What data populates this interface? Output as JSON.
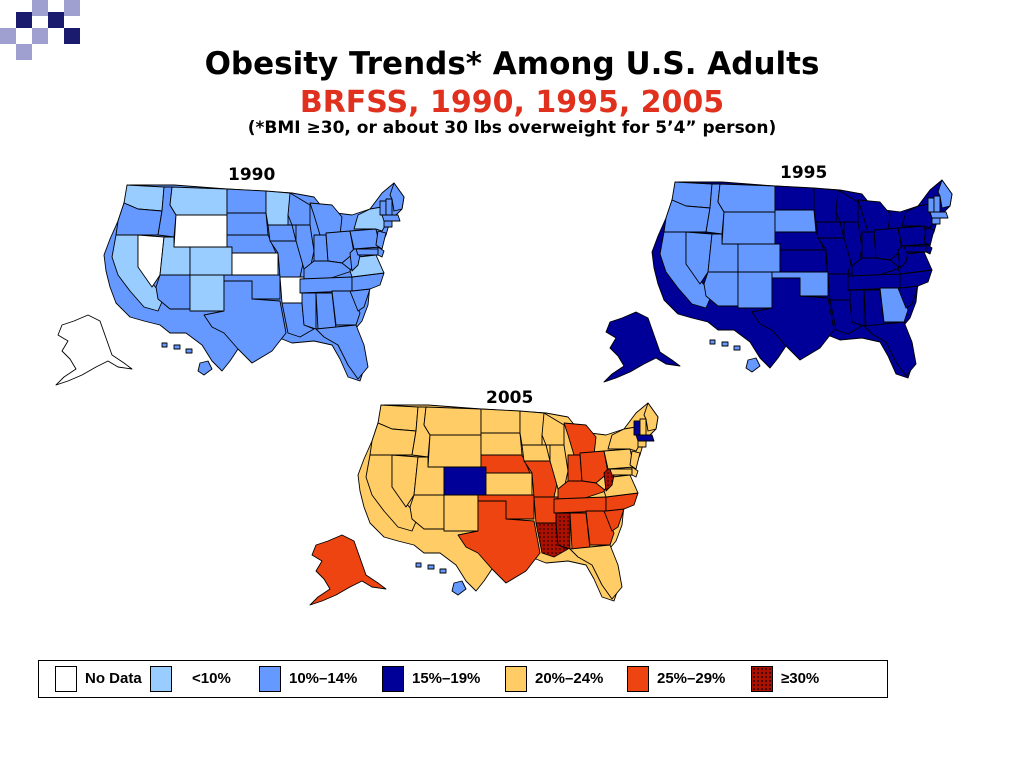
{
  "header": {
    "title": "Obesity Trends* Among U.S. Adults",
    "subtitle": "BRFSS, 1990, 1995, 2005",
    "note": "(*BMI ≥30, or about 30 lbs overweight for 5’4” person)"
  },
  "colors": {
    "deco_navy": "#1a1a6e",
    "deco_lavender": "#9fa0cf",
    "title_red": "#e0301e",
    "no_data": "#ffffff",
    "lt10": "#99ccff",
    "p10_14": "#6699ff",
    "p15_19": "#000099",
    "p20_24": "#ffcc66",
    "p25_29": "#ee4411",
    "ge30": "#aa1100"
  },
  "legend": {
    "items": [
      {
        "key": "no_data",
        "label": "No Data",
        "color": "#ffffff",
        "pattern": false
      },
      {
        "key": "lt10",
        "label": "<10%",
        "color": "#99ccff",
        "pattern": false
      },
      {
        "key": "p10_14",
        "label": "10%–14%",
        "color": "#6699ff",
        "pattern": false
      },
      {
        "key": "p15_19",
        "label": "15%–19%",
        "color": "#000099",
        "pattern": false
      },
      {
        "key": "p20_24",
        "label": "20%–24%",
        "color": "#ffcc66",
        "pattern": false
      },
      {
        "key": "p25_29",
        "label": "25%–29%",
        "color": "#ee4411",
        "pattern": false
      },
      {
        "key": "ge30",
        "label": "≥30%",
        "color": "#aa1100",
        "pattern": true
      }
    ]
  },
  "maps": [
    {
      "year": "1990",
      "base": "p10_14",
      "alaska": "no_data",
      "hawaii": "p10_14",
      "states": {
        "WA": "lt10",
        "MT": "lt10",
        "ND": "p10_14",
        "MN": "lt10",
        "WI": "p10_14",
        "MI": "p10_14",
        "OR": "p10_14",
        "ID": "p10_14",
        "WY": "no_data",
        "SD": "p10_14",
        "IA": "p10_14",
        "IL": "p10_14",
        "IN": "p10_14",
        "OH": "p10_14",
        "PA": "p10_14",
        "NY": "lt10",
        "ME": "p10_14",
        "VT": "p10_14",
        "NH": "p10_14",
        "MA": "p10_14",
        "CT": "p10_14",
        "NJ": "p10_14",
        "CA": "lt10",
        "NV": "no_data",
        "UT": "lt10",
        "CO": "lt10",
        "NE": "p10_14",
        "KS": "no_data",
        "MO": "p10_14",
        "KY": "p10_14",
        "WV": "p10_14",
        "VA": "lt10",
        "MD": "p10_14",
        "DE": "p10_14",
        "AZ": "p10_14",
        "NM": "lt10",
        "OK": "p10_14",
        "AR": "no_data",
        "TN": "p10_14",
        "NC": "p10_14",
        "SC": "p10_14",
        "TX": "p10_14",
        "LA": "p10_14",
        "MS": "p10_14",
        "AL": "p10_14",
        "GA": "p10_14",
        "FL": "p10_14"
      }
    },
    {
      "year": "1995",
      "base": "p15_19",
      "alaska": "p15_19",
      "hawaii": "p10_14",
      "states": {
        "WA": "p10_14",
        "MT": "p10_14",
        "ND": "p15_19",
        "MN": "p15_19",
        "WI": "p15_19",
        "MI": "p15_19",
        "OR": "p10_14",
        "ID": "p10_14",
        "WY": "p10_14",
        "SD": "p10_14",
        "IA": "p15_19",
        "IL": "p15_19",
        "IN": "p15_19",
        "OH": "p15_19",
        "PA": "p15_19",
        "NY": "p15_19",
        "ME": "p10_14",
        "VT": "p10_14",
        "NH": "p10_14",
        "MA": "p10_14",
        "CT": "p10_14",
        "NJ": "p15_19",
        "CA": "p10_14",
        "NV": "p10_14",
        "UT": "p10_14",
        "CO": "p10_14",
        "NE": "p15_19",
        "KS": "p15_19",
        "MO": "p15_19",
        "KY": "p15_19",
        "WV": "p15_19",
        "VA": "p15_19",
        "MD": "p15_19",
        "DE": "p15_19",
        "AZ": "p10_14",
        "NM": "p10_14",
        "OK": "p10_14",
        "AR": "p15_19",
        "TN": "p15_19",
        "NC": "p15_19",
        "SC": "p15_19",
        "TX": "p15_19",
        "LA": "p15_19",
        "MS": "p15_19",
        "AL": "p15_19",
        "GA": "p10_14",
        "FL": "p15_19"
      }
    },
    {
      "year": "2005",
      "base": "p20_24",
      "alaska": "p25_29",
      "hawaii": "p10_14",
      "states": {
        "WA": "p20_24",
        "MT": "p20_24",
        "ND": "p20_24",
        "MN": "p20_24",
        "WI": "p20_24",
        "MI": "p25_29",
        "OR": "p20_24",
        "ID": "p20_24",
        "WY": "p20_24",
        "SD": "p20_24",
        "IA": "p20_24",
        "IL": "p20_24",
        "IN": "p25_29",
        "OH": "p25_29",
        "PA": "p20_24",
        "NY": "p20_24",
        "ME": "p20_24",
        "VT": "p15_19",
        "NH": "p20_24",
        "MA": "p15_19",
        "CT": "p20_24",
        "NJ": "p20_24",
        "CA": "p20_24",
        "NV": "p20_24",
        "UT": "p20_24",
        "CO": "p15_19",
        "NE": "p25_29",
        "KS": "p20_24",
        "MO": "p25_29",
        "KY": "p25_29",
        "WV": "ge30",
        "VA": "p20_24",
        "MD": "p20_24",
        "DE": "p20_24",
        "AZ": "p20_24",
        "NM": "p20_24",
        "OK": "p25_29",
        "AR": "p25_29",
        "TN": "p25_29",
        "NC": "p25_29",
        "SC": "p25_29",
        "TX": "p25_29",
        "LA": "ge30",
        "MS": "ge30",
        "AL": "p25_29",
        "GA": "p25_29",
        "FL": "p20_24"
      }
    }
  ]
}
